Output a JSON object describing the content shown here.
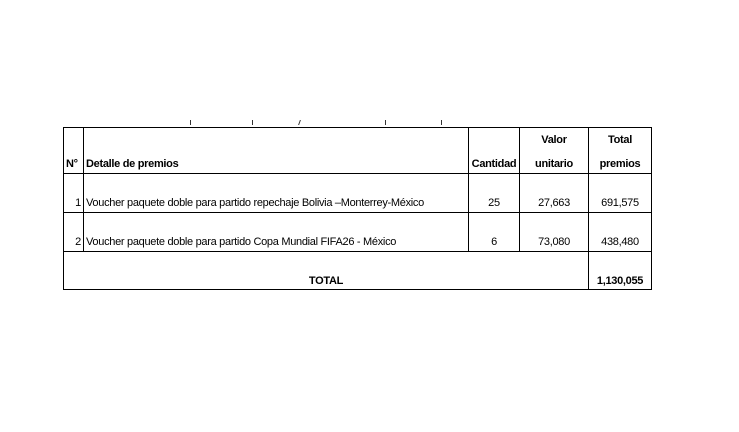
{
  "table": {
    "headers": {
      "num": "N°",
      "detail": "Detalle de premios",
      "qty": "Cantidad",
      "unit_line1": "Valor",
      "unit_line2": "unitario",
      "total_line1": "Total",
      "total_line2": "premios"
    },
    "rows": [
      {
        "num": "1",
        "detail": "Voucher paquete doble para partido repechaje Bolivia –Monterrey-México",
        "qty": "25",
        "unit": "27,663",
        "total": "691,575"
      },
      {
        "num": "2",
        "detail": "Voucher paquete doble para partido Copa Mundial FIFA26 - México",
        "qty": "6",
        "unit": "73,080",
        "total": "438,480"
      }
    ],
    "total_label": "TOTAL",
    "total_value": "1,130,055"
  }
}
